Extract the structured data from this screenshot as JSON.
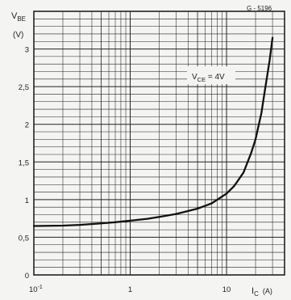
{
  "chart_data": {
    "type": "line",
    "code": "G - 5196",
    "ylabel": {
      "main": "V",
      "sub": "BE",
      "unit": "(V)"
    },
    "xlabel": {
      "main": "I",
      "sub": "C",
      "unit": "(A)"
    },
    "x_scale": "log",
    "xlim": [
      0.1,
      40
    ],
    "ylim": [
      0,
      3.5
    ],
    "grid": true,
    "x_ticks": [
      {
        "value": 0.1,
        "label": "10",
        "exp": "-1"
      },
      {
        "value": 1,
        "label": "1",
        "exp": ""
      },
      {
        "value": 10,
        "label": "10",
        "exp": ""
      }
    ],
    "y_ticks": [
      {
        "value": 0,
        "label": "0"
      },
      {
        "value": 0.5,
        "label": "0,5"
      },
      {
        "value": 1,
        "label": "1"
      },
      {
        "value": 1.5,
        "label": "1,5"
      },
      {
        "value": 2,
        "label": "2"
      },
      {
        "value": 2.5,
        "label": "2,5"
      },
      {
        "value": 3,
        "label": "3"
      }
    ],
    "series": [
      {
        "annotation": {
          "main": "V",
          "sub": "CE",
          "rest": " = 4V"
        },
        "x": [
          0.1,
          0.2,
          0.3,
          0.5,
          0.7,
          1,
          1.5,
          2,
          3,
          5,
          7,
          10,
          12,
          15,
          18,
          20,
          23,
          25,
          28,
          30
        ],
        "y": [
          0.65,
          0.655,
          0.665,
          0.685,
          0.7,
          0.72,
          0.745,
          0.77,
          0.81,
          0.88,
          0.95,
          1.08,
          1.18,
          1.36,
          1.62,
          1.8,
          2.15,
          2.45,
          2.85,
          3.15
        ]
      }
    ]
  }
}
